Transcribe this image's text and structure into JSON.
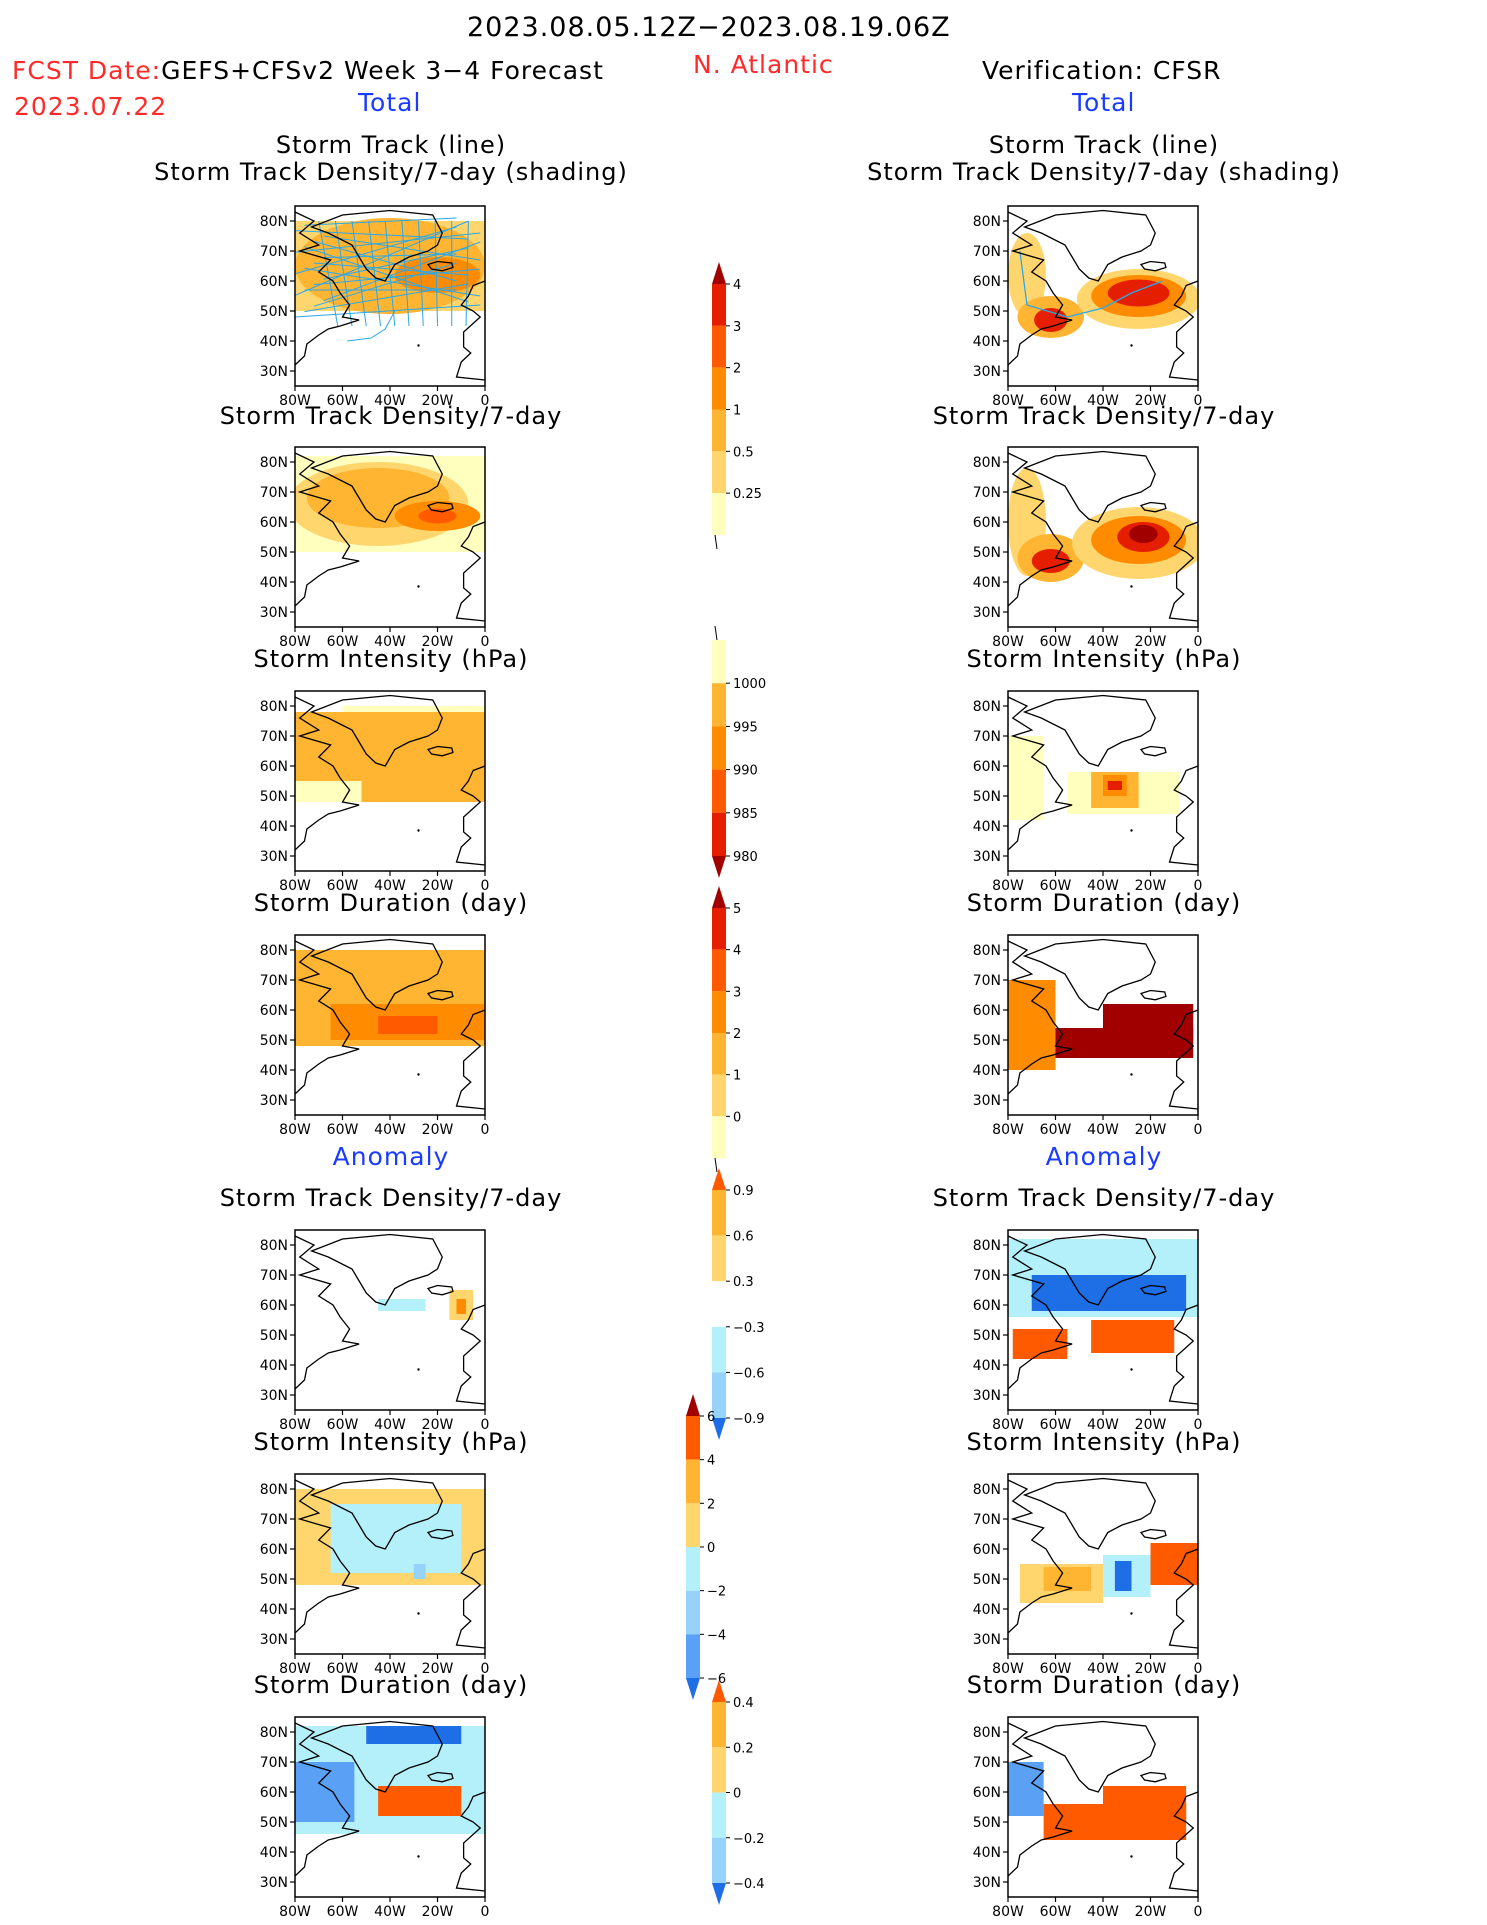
{
  "header": {
    "period": "2023.08.05.12Z−2023.08.19.06Z",
    "fcst_label": "FCST Date:",
    "fcst_date": "2023.07.22",
    "model": "GEFS+CFSv2 Week 3−4 Forecast",
    "region": "N. Atlantic",
    "verification": "Verification: CFSR",
    "left_total": "Total",
    "right_total": "Total",
    "left_anomaly": "Anomaly",
    "right_anomaly": "Anomaly"
  },
  "colors": {
    "yellow_light": "#ffffbe",
    "yellow": "#ffd66e",
    "orange_light": "#ffb432",
    "orange": "#ff8c00",
    "orange_red": "#ff5a00",
    "red": "#e61e00",
    "dark_red": "#a00000",
    "blue_light": "#b4f0fa",
    "blue": "#96d2fa",
    "blue_mid": "#5aa0f5",
    "blue_dark": "#1e6ee6",
    "track_line": "#2aa8e8"
  },
  "axes": {
    "lat_ticks": [
      "80N",
      "70N",
      "60N",
      "50N",
      "40N",
      "30N"
    ],
    "lon_ticks": [
      "80W",
      "60W",
      "40W",
      "20W",
      "0"
    ]
  },
  "chart_data": [
    {
      "type": "heatmap",
      "panel": "forecast",
      "title": "Storm Track (line)\nStorm Track Density/7-day (shading)",
      "title_line1": "Storm Track (line)",
      "title_line2": "Storm Track Density/7-day (shading)",
      "field": "track",
      "xlim": [
        -80,
        0
      ],
      "ylim": [
        25,
        85
      ]
    },
    {
      "type": "heatmap",
      "panel": "forecast",
      "title": "Storm Track Density/7-day",
      "title_line1": "Storm Track Density/7-day",
      "field": "density",
      "xlim": [
        -80,
        0
      ],
      "ylim": [
        25,
        85
      ]
    },
    {
      "type": "heatmap",
      "panel": "forecast",
      "title": "Storm Intensity (hPa)",
      "title_line1": "Storm Intensity (hPa)",
      "field": "intensity",
      "xlim": [
        -80,
        0
      ],
      "ylim": [
        25,
        85
      ]
    },
    {
      "type": "heatmap",
      "panel": "forecast",
      "title": "Storm Duration (day)",
      "title_line1": "Storm Duration (day)",
      "field": "duration",
      "xlim": [
        -80,
        0
      ],
      "ylim": [
        25,
        85
      ]
    },
    {
      "type": "heatmap",
      "panel": "forecast",
      "title": "Storm Track Density/7-day",
      "title_line1": "Storm Track Density/7-day",
      "field": "density_anom",
      "xlim": [
        -80,
        0
      ],
      "ylim": [
        25,
        85
      ]
    },
    {
      "type": "heatmap",
      "panel": "forecast",
      "title": "Storm Intensity (hPa)",
      "title_line1": "Storm Intensity (hPa)",
      "field": "intensity_anom",
      "xlim": [
        -80,
        0
      ],
      "ylim": [
        25,
        85
      ]
    },
    {
      "type": "heatmap",
      "panel": "forecast",
      "title": "Storm Duration (day)",
      "title_line1": "Storm Duration (day)",
      "field": "duration_anom",
      "xlim": [
        -80,
        0
      ],
      "ylim": [
        25,
        85
      ]
    },
    {
      "type": "heatmap",
      "panel": "verification",
      "title": "Storm Track (line)\nStorm Track Density/7-day (shading)",
      "title_line1": "Storm Track (line)",
      "title_line2": "Storm Track Density/7-day (shading)",
      "field": "track",
      "xlim": [
        -80,
        0
      ],
      "ylim": [
        25,
        85
      ]
    },
    {
      "type": "heatmap",
      "panel": "verification",
      "title": "Storm Track Density/7-day",
      "title_line1": "Storm Track Density/7-day",
      "field": "density",
      "xlim": [
        -80,
        0
      ],
      "ylim": [
        25,
        85
      ]
    },
    {
      "type": "heatmap",
      "panel": "verification",
      "title": "Storm Intensity (hPa)",
      "title_line1": "Storm Intensity (hPa)",
      "field": "intensity",
      "xlim": [
        -80,
        0
      ],
      "ylim": [
        25,
        85
      ]
    },
    {
      "type": "heatmap",
      "panel": "verification",
      "title": "Storm Duration (day)",
      "title_line1": "Storm Duration (day)",
      "field": "duration",
      "xlim": [
        -80,
        0
      ],
      "ylim": [
        25,
        85
      ]
    },
    {
      "type": "heatmap",
      "panel": "verification",
      "title": "Storm Track Density/7-day",
      "title_line1": "Storm Track Density/7-day",
      "field": "density_anom",
      "xlim": [
        -80,
        0
      ],
      "ylim": [
        25,
        85
      ]
    },
    {
      "type": "heatmap",
      "panel": "verification",
      "title": "Storm Intensity (hPa)",
      "title_line1": "Storm Intensity (hPa)",
      "field": "intensity_anom",
      "xlim": [
        -80,
        0
      ],
      "ylim": [
        25,
        85
      ]
    },
    {
      "type": "heatmap",
      "panel": "verification",
      "title": "Storm Duration (day)",
      "title_line1": "Storm Duration (day)",
      "field": "duration_anom",
      "xlim": [
        -80,
        0
      ],
      "ylim": [
        25,
        85
      ]
    }
  ],
  "colorbars": [
    {
      "name": "density",
      "labels": [
        "4",
        "3",
        "2",
        "1",
        "0.5",
        "0.25"
      ],
      "colors": [
        "#a00000",
        "#e61e00",
        "#ff5a00",
        "#ff8c00",
        "#ffb432",
        "#ffd66e",
        "#ffffbe"
      ]
    },
    {
      "name": "intensity",
      "labels": [
        "1000",
        "995",
        "990",
        "985",
        "980"
      ],
      "colors": [
        "#ffffbe",
        "#ffb432",
        "#ff8c00",
        "#ff5a00",
        "#e61e00",
        "#a00000"
      ]
    },
    {
      "name": "duration",
      "labels": [
        "5",
        "4",
        "3",
        "2",
        "1",
        "0"
      ],
      "colors": [
        "#a00000",
        "#e61e00",
        "#ff5a00",
        "#ff8c00",
        "#ffb432",
        "#ffd66e",
        "#ffffbe"
      ]
    },
    {
      "name": "density_anom",
      "labels": [
        "0.9",
        "0.6",
        "0.3",
        "−0.3",
        "−0.6",
        "−0.9"
      ],
      "colors": [
        "#ff5a00",
        "#ffb432",
        "#ffd66e",
        "#ffffff",
        "#b4f0fa",
        "#96d2fa",
        "#1e6ee6"
      ]
    },
    {
      "name": "intensity_anom",
      "labels": [
        "6",
        "4",
        "2",
        "0",
        "−2",
        "−4",
        "−6"
      ],
      "colors": [
        "#a00000",
        "#ff5a00",
        "#ffb432",
        "#ffd66e",
        "#b4f0fa",
        "#96d2fa",
        "#5aa0f5",
        "#1e6ee6"
      ]
    },
    {
      "name": "duration_anom",
      "labels": [
        "0.4",
        "0.2",
        "0",
        "−0.2",
        "−0.4"
      ],
      "colors": [
        "#ff5a00",
        "#ffb432",
        "#ffd66e",
        "#b4f0fa",
        "#96d2fa",
        "#1e6ee6"
      ]
    }
  ]
}
